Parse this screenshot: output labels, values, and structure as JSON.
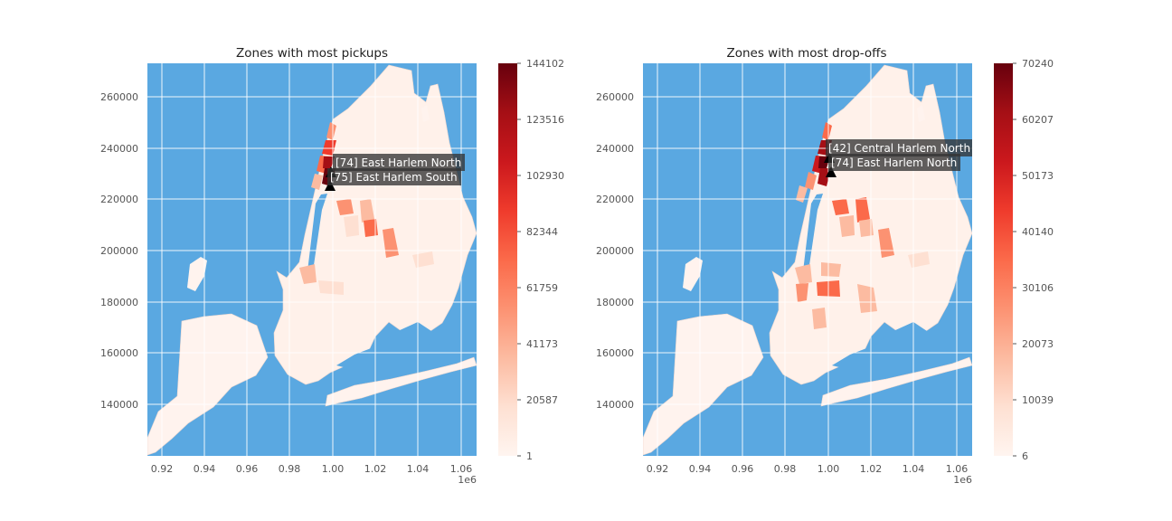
{
  "chart_data": [
    {
      "type": "choropleth",
      "title": "Zones with most pickups",
      "x_ticks": [
        "0.92",
        "0.94",
        "0.96",
        "0.98",
        "1.00",
        "1.02",
        "1.04",
        "1.06"
      ],
      "x_offset_label": "1e6",
      "y_ticks": [
        "260000",
        "240000",
        "220000",
        "200000",
        "180000",
        "160000",
        "140000"
      ],
      "xlim": [
        0.913,
        1.067
      ],
      "ylim": [
        120500,
        272500
      ],
      "colorbar": {
        "cmap": "Reds",
        "min": 1,
        "max": 144102,
        "tick_labels": [
          "144102",
          "123516",
          "102930",
          "82344",
          "61759",
          "41173",
          "20587",
          "1"
        ]
      },
      "annotations": [
        {
          "label": "[74] East Harlem North",
          "x": 0.999,
          "y": 231500
        },
        {
          "label": "[75] East Harlem South",
          "x": 0.9985,
          "y": 226000
        }
      ],
      "grid": true,
      "background_color": "#5aa8e1"
    },
    {
      "type": "choropleth",
      "title": "Zones with most drop-offs",
      "x_ticks": [
        "0.92",
        "0.94",
        "0.96",
        "0.98",
        "1.00",
        "1.02",
        "1.04",
        "1.06"
      ],
      "x_offset_label": "1e6",
      "y_ticks": [
        "260000",
        "240000",
        "220000",
        "200000",
        "180000",
        "160000",
        "140000"
      ],
      "xlim": [
        0.913,
        1.067
      ],
      "ylim": [
        120500,
        272500
      ],
      "colorbar": {
        "cmap": "Reds",
        "min": 6,
        "max": 70240,
        "tick_labels": [
          "70240",
          "60207",
          "50173",
          "40140",
          "30106",
          "20073",
          "10039",
          "6"
        ]
      },
      "annotations": [
        {
          "label": "[42] Central Harlem North",
          "x": 1.0,
          "y": 237500
        },
        {
          "label": "[74] East Harlem North",
          "x": 1.001,
          "y": 231500
        }
      ],
      "grid": true,
      "background_color": "#5aa8e1"
    }
  ]
}
